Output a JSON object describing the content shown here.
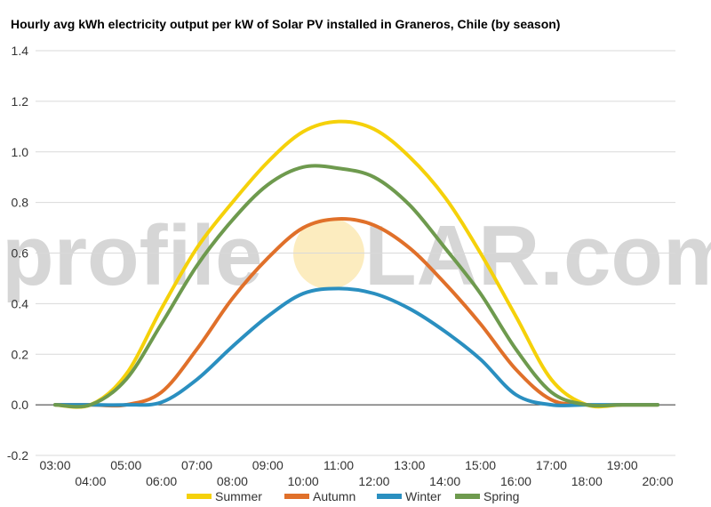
{
  "chart_data": {
    "type": "line",
    "title": "Hourly avg kWh electricity output per kW of Solar PV installed in Graneros, Chile (by season)",
    "xlabel": "",
    "ylabel": "",
    "x": [
      "03:00",
      "04:00",
      "05:00",
      "06:00",
      "07:00",
      "08:00",
      "09:00",
      "10:00",
      "11:00",
      "12:00",
      "13:00",
      "14:00",
      "15:00",
      "16:00",
      "17:00",
      "18:00",
      "19:00",
      "20:00"
    ],
    "ylim": [
      -0.2,
      1.4
    ],
    "yticks": [
      "-0.2",
      "0.0",
      "0.2",
      "0.4",
      "0.6",
      "0.8",
      "1.0",
      "1.2",
      "1.4"
    ],
    "grid": true,
    "legend_position": "bottom",
    "series": [
      {
        "name": "Summer",
        "color": "#f5d10a",
        "values": [
          0.0,
          0.0,
          0.12,
          0.38,
          0.62,
          0.8,
          0.96,
          1.08,
          1.12,
          1.09,
          0.98,
          0.82,
          0.6,
          0.35,
          0.1,
          0.0,
          0.0,
          0.0
        ]
      },
      {
        "name": "Autumn",
        "color": "#e0702a",
        "values": [
          0.0,
          0.0,
          0.0,
          0.05,
          0.22,
          0.42,
          0.58,
          0.7,
          0.735,
          0.71,
          0.62,
          0.48,
          0.32,
          0.14,
          0.02,
          0.0,
          0.0,
          0.0
        ]
      },
      {
        "name": "Winter",
        "color": "#2a8fc0",
        "values": [
          0.0,
          0.0,
          0.0,
          0.01,
          0.1,
          0.23,
          0.35,
          0.44,
          0.46,
          0.44,
          0.38,
          0.29,
          0.18,
          0.04,
          0.0,
          0.0,
          0.0,
          0.0
        ]
      },
      {
        "name": "Spring",
        "color": "#6e9a4e",
        "values": [
          0.0,
          0.0,
          0.1,
          0.32,
          0.55,
          0.73,
          0.87,
          0.94,
          0.935,
          0.9,
          0.79,
          0.62,
          0.44,
          0.22,
          0.05,
          0.0,
          0.0,
          0.0
        ]
      }
    ]
  },
  "watermark": {
    "text_left": "profile",
    "text_right": "LAR.com",
    "sun_color": "#f7c948"
  }
}
